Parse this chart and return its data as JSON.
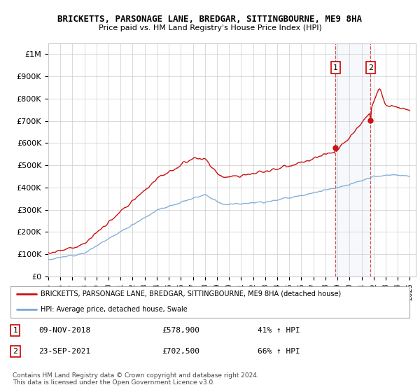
{
  "title": "BRICKETTS, PARSONAGE LANE, BREDGAR, SITTINGBOURNE, ME9 8HA",
  "subtitle": "Price paid vs. HM Land Registry's House Price Index (HPI)",
  "ylim": [
    0,
    1050000
  ],
  "yticks": [
    0,
    100000,
    200000,
    300000,
    400000,
    500000,
    600000,
    700000,
    800000,
    900000,
    1000000
  ],
  "ytick_labels": [
    "£0",
    "£100K",
    "£200K",
    "£300K",
    "£400K",
    "£500K",
    "£600K",
    "£700K",
    "£800K",
    "£900K",
    "£1M"
  ],
  "hpi_color": "#7aa8d4",
  "price_color": "#cc1111",
  "sale1_year": 2018.86,
  "sale1_price": 578900,
  "sale2_year": 2021.72,
  "sale2_price": 702500,
  "sale1_info": "09-NOV-2018",
  "sale1_price_str": "£578,900",
  "sale1_hpi": "41% ↑ HPI",
  "sale2_info": "23-SEP-2021",
  "sale2_price_str": "£702,500",
  "sale2_hpi": "66% ↑ HPI",
  "legend_line1": "BRICKETTS, PARSONAGE LANE, BREDGAR, SITTINGBOURNE, ME9 8HA (detached house)",
  "legend_line2": "HPI: Average price, detached house, Swale",
  "footer": "Contains HM Land Registry data © Crown copyright and database right 2024.\nThis data is licensed under the Open Government Licence v3.0.",
  "background_color": "#ffffff",
  "grid_color": "#cccccc",
  "xstart": 1995,
  "xend": 2025
}
